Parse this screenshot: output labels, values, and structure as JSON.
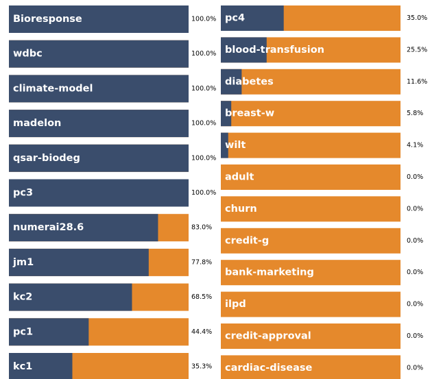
{
  "chart_data": {
    "type": "bar",
    "orientation": "horizontal",
    "stacked": true,
    "value_range": [
      0,
      100
    ],
    "grid": false,
    "legend": "none",
    "colors": {
      "filled": "#3a4d6c",
      "remainder": "#e5892c"
    },
    "panels": [
      {
        "categories": [
          "Bioresponse",
          "wdbc",
          "climate-model",
          "madelon",
          "qsar-biodeg",
          "pc3",
          "numerai28.6",
          "jm1",
          "kc2",
          "pc1",
          "kc1"
        ],
        "values": [
          100.0,
          100.0,
          100.0,
          100.0,
          100.0,
          100.0,
          83.0,
          77.8,
          68.5,
          44.4,
          35.3
        ],
        "value_labels": [
          "100.0%",
          "100.0%",
          "100.0%",
          "100.0%",
          "100.0%",
          "100.0%",
          "83.0%",
          "77.8%",
          "68.5%",
          "44.4%",
          "35.3%"
        ]
      },
      {
        "categories": [
          "pc4",
          "blood-transfusion",
          "diabetes",
          "breast-w",
          "wilt",
          "adult",
          "churn",
          "credit-g",
          "bank-marketing",
          "ilpd",
          "credit-approval",
          "cardiac-disease"
        ],
        "values": [
          35.0,
          25.5,
          11.6,
          5.8,
          4.1,
          0.0,
          0.0,
          0.0,
          0.0,
          0.0,
          0.0,
          0.0
        ],
        "value_labels": [
          "35.0%",
          "25.5%",
          "11.6%",
          "5.8%",
          "4.1%",
          "0.0%",
          "0.0%",
          "0.0%",
          "0.0%",
          "0.0%",
          "0.0%",
          "0.0%"
        ]
      }
    ]
  }
}
